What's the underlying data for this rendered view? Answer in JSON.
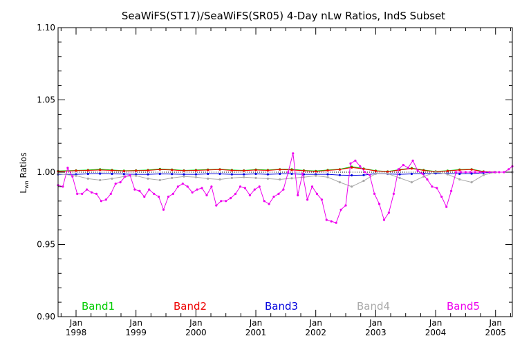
{
  "chart_data": {
    "type": "line",
    "title": "SeaWiFS(ST17)/SeaWiFS(SR05) 4-Day nLw Ratios, IndS Subset",
    "ylabel_main": "L",
    "ylabel_sub": "wn",
    "ylabel_rest": " Ratios",
    "xlabel": "",
    "ylim": [
      0.9,
      1.1
    ],
    "xlim": [
      1997.7,
      2005.28
    ],
    "y_ticks": [
      {
        "value": 0.9,
        "label": "0.90"
      },
      {
        "value": 0.95,
        "label": "0.95"
      },
      {
        "value": 1.0,
        "label": "1.00"
      },
      {
        "value": 1.05,
        "label": "1.05"
      },
      {
        "value": 1.1,
        "label": "1.10"
      }
    ],
    "x_ticks": [
      {
        "value": 1998.0,
        "month": "Jan",
        "year": "1998"
      },
      {
        "value": 1999.0,
        "month": "Jan",
        "year": "1999"
      },
      {
        "value": 2000.0,
        "month": "Jan",
        "year": "2000"
      },
      {
        "value": 2001.0,
        "month": "Jan",
        "year": "2001"
      },
      {
        "value": 2002.0,
        "month": "Jan",
        "year": "2002"
      },
      {
        "value": 2003.0,
        "month": "Jan",
        "year": "2003"
      },
      {
        "value": 2004.0,
        "month": "Jan",
        "year": "2004"
      },
      {
        "value": 2005.0,
        "month": "Jan",
        "year": "2005"
      }
    ],
    "legend_position": "bottom",
    "reference_line": 1.0,
    "series": [
      {
        "name": "Band1",
        "color": "#00cc00",
        "x": [
          1997.7,
          1998.0,
          1998.2,
          1998.4,
          1998.6,
          1998.8,
          1999.0,
          1999.2,
          1999.4,
          1999.6,
          1999.8,
          2000.0,
          2000.2,
          2000.4,
          2000.6,
          2000.8,
          2001.0,
          2001.2,
          2001.4,
          2001.6,
          2001.8,
          2002.0,
          2002.2,
          2002.4,
          2002.6,
          2002.8,
          2003.0,
          2003.2,
          2003.4,
          2003.6,
          2003.8,
          2004.0,
          2004.2,
          2004.4,
          2004.6,
          2004.8,
          2005.0,
          2005.28
        ],
        "y": [
          1.0008,
          1.0012,
          1.0015,
          1.002,
          1.0015,
          1.001,
          1.0012,
          1.0015,
          1.0022,
          1.0018,
          1.0012,
          1.0015,
          1.0018,
          1.002,
          1.0015,
          1.0012,
          1.0018,
          1.0015,
          1.002,
          1.002,
          1.0012,
          1.0008,
          1.0015,
          1.002,
          1.0038,
          1.0025,
          1.001,
          1.0005,
          1.0018,
          1.0028,
          1.0015,
          1.0005,
          1.001,
          1.0018,
          1.002,
          1.0005,
          1.0,
          1.0
        ]
      },
      {
        "name": "Band2",
        "color": "#ee0000",
        "x": [
          1997.7,
          1998.0,
          1998.2,
          1998.4,
          1998.6,
          1998.8,
          1999.0,
          1999.2,
          1999.4,
          1999.6,
          1999.8,
          2000.0,
          2000.2,
          2000.4,
          2000.6,
          2000.8,
          2001.0,
          2001.2,
          2001.4,
          2001.6,
          2001.8,
          2002.0,
          2002.2,
          2002.4,
          2002.6,
          2002.8,
          2003.0,
          2003.2,
          2003.4,
          2003.6,
          2003.8,
          2004.0,
          2004.2,
          2004.4,
          2004.6,
          2004.8,
          2005.0,
          2005.28
        ],
        "y": [
          1.0005,
          1.001,
          1.0012,
          1.0015,
          1.0012,
          1.0008,
          1.001,
          1.0012,
          1.0018,
          1.0015,
          1.001,
          1.0012,
          1.0015,
          1.0018,
          1.0012,
          1.001,
          1.0015,
          1.0012,
          1.0018,
          1.0015,
          1.001,
          1.0005,
          1.0012,
          1.0018,
          1.0032,
          1.0022,
          1.0008,
          1.0003,
          1.0015,
          1.0025,
          1.0012,
          1.0003,
          1.0008,
          1.0015,
          1.0018,
          1.0003,
          1.0,
          1.0
        ]
      },
      {
        "name": "Band3",
        "color": "#0000dd",
        "x": [
          1997.7,
          1998.0,
          1998.2,
          1998.4,
          1998.6,
          1998.8,
          1999.0,
          1999.2,
          1999.4,
          1999.6,
          1999.8,
          2000.0,
          2000.2,
          2000.4,
          2000.6,
          2000.8,
          2001.0,
          2001.2,
          2001.4,
          2001.6,
          2001.8,
          2002.0,
          2002.2,
          2002.4,
          2002.6,
          2002.8,
          2003.0,
          2003.2,
          2003.4,
          2003.6,
          2003.8,
          2004.0,
          2004.2,
          2004.4,
          2004.6,
          2004.8,
          2005.0,
          2005.28
        ],
        "y": [
          0.9985,
          0.9985,
          0.9988,
          0.999,
          0.9988,
          0.9987,
          0.9985,
          0.9985,
          0.9988,
          0.9987,
          0.9985,
          0.9985,
          0.9988,
          0.9988,
          0.9985,
          0.9985,
          0.9988,
          0.9985,
          0.9988,
          0.9988,
          0.9985,
          0.9985,
          0.9985,
          0.998,
          0.9978,
          0.998,
          0.999,
          0.9988,
          0.9985,
          0.9988,
          0.999,
          0.9992,
          0.999,
          0.9988,
          0.999,
          0.9995,
          1.0,
          1.0
        ]
      },
      {
        "name": "Band4",
        "color": "#aaaaaa",
        "x": [
          1997.7,
          1998.0,
          1998.2,
          1998.4,
          1998.6,
          1998.8,
          1999.0,
          1999.2,
          1999.4,
          1999.6,
          1999.8,
          2000.0,
          2000.2,
          2000.4,
          2000.6,
          2000.8,
          2001.0,
          2001.2,
          2001.4,
          2001.6,
          2001.8,
          2002.0,
          2002.2,
          2002.4,
          2002.6,
          2002.8,
          2003.0,
          2003.2,
          2003.4,
          2003.6,
          2003.8,
          2004.0,
          2004.2,
          2004.4,
          2004.6,
          2004.8,
          2005.0,
          2005.28
        ],
        "y": [
          0.999,
          0.9975,
          0.9955,
          0.9945,
          0.9955,
          0.997,
          0.9975,
          0.9955,
          0.9945,
          0.996,
          0.997,
          0.9965,
          0.9955,
          0.995,
          0.996,
          0.9965,
          0.996,
          0.9955,
          0.995,
          0.9958,
          0.9965,
          0.9975,
          0.9965,
          0.993,
          0.99,
          0.994,
          0.999,
          0.999,
          0.996,
          0.993,
          0.997,
          1.0,
          0.9985,
          0.995,
          0.993,
          0.998,
          1.0,
          1.0
        ]
      },
      {
        "name": "Band5",
        "color": "#ee00ee",
        "x": [
          1997.7,
          1997.78,
          1997.86,
          1997.94,
          1998.02,
          1998.1,
          1998.18,
          1998.26,
          1998.34,
          1998.42,
          1998.5,
          1998.58,
          1998.66,
          1998.74,
          1998.82,
          1998.9,
          1998.98,
          1999.06,
          1999.14,
          1999.22,
          1999.3,
          1999.38,
          1999.46,
          1999.54,
          1999.62,
          1999.7,
          1999.78,
          1999.86,
          1999.94,
          2000.02,
          2000.1,
          2000.18,
          2000.26,
          2000.34,
          2000.42,
          2000.5,
          2000.58,
          2000.66,
          2000.74,
          2000.82,
          2000.9,
          2000.98,
          2001.06,
          2001.14,
          2001.22,
          2001.3,
          2001.38,
          2001.46,
          2001.54,
          2001.62,
          2001.7,
          2001.78,
          2001.86,
          2001.94,
          2002.02,
          2002.1,
          2002.18,
          2002.26,
          2002.34,
          2002.42,
          2002.5,
          2002.58,
          2002.66,
          2002.74,
          2002.82,
          2002.9,
          2002.98,
          2003.06,
          2003.14,
          2003.22,
          2003.3,
          2003.38,
          2003.46,
          2003.54,
          2003.62,
          2003.7,
          2003.78,
          2003.86,
          2003.94,
          2004.02,
          2004.1,
          2004.18,
          2004.26,
          2004.34,
          2004.42,
          2004.5,
          2004.58,
          2004.66,
          2004.74,
          2004.82,
          2004.9,
          2004.98,
          2005.06,
          2005.14,
          2005.22,
          2005.28
        ],
        "y": [
          0.991,
          0.99,
          1.003,
          0.997,
          0.985,
          0.985,
          0.988,
          0.986,
          0.985,
          0.98,
          0.981,
          0.985,
          0.992,
          0.993,
          0.997,
          0.998,
          0.988,
          0.987,
          0.983,
          0.988,
          0.985,
          0.983,
          0.974,
          0.983,
          0.985,
          0.99,
          0.992,
          0.99,
          0.986,
          0.988,
          0.989,
          0.984,
          0.99,
          0.977,
          0.98,
          0.98,
          0.982,
          0.985,
          0.99,
          0.989,
          0.984,
          0.988,
          0.99,
          0.98,
          0.978,
          0.983,
          0.985,
          0.988,
          1.0,
          1.013,
          0.984,
          0.999,
          0.981,
          0.99,
          0.985,
          0.981,
          0.967,
          0.966,
          0.965,
          0.974,
          0.977,
          1.006,
          1.008,
          1.004,
          1.0,
          0.998,
          0.985,
          0.978,
          0.967,
          0.972,
          0.985,
          1.002,
          1.005,
          1.003,
          1.008,
          1.001,
          0.999,
          0.995,
          0.99,
          0.989,
          0.983,
          0.976,
          0.987,
          1.0,
          1.0,
          1.0,
          1.0,
          1.0,
          1.0,
          1.0,
          1.0,
          1.0,
          1.0,
          1.0,
          1.002,
          1.004
        ]
      }
    ]
  }
}
